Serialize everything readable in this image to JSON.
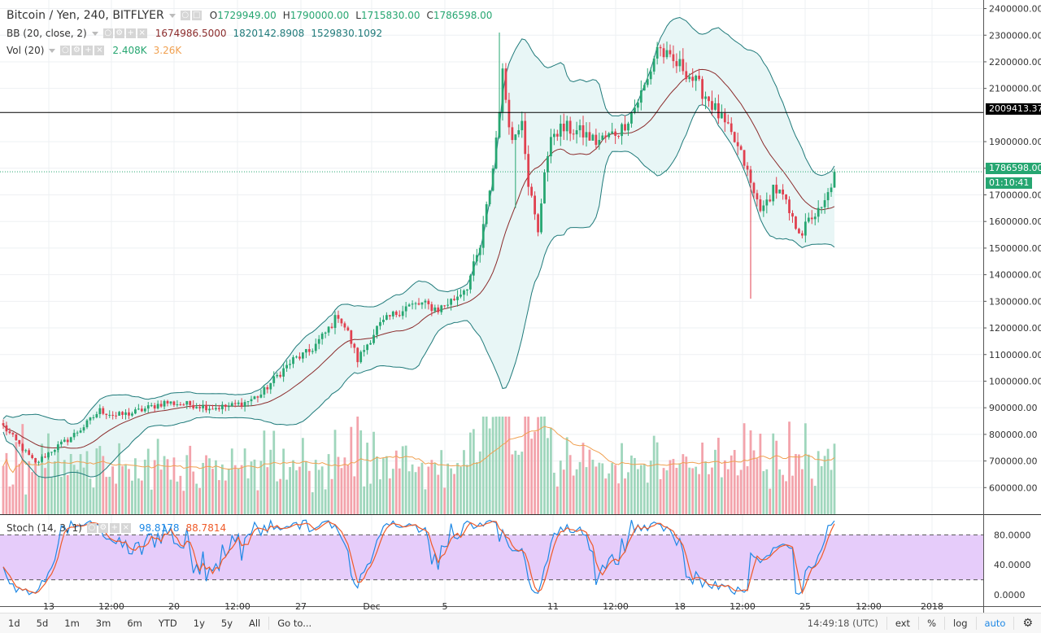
{
  "header": {
    "symbol_title": "Bitcoin / Yen, 240, BITFLYER",
    "open_label": "O",
    "open": "1729949.00",
    "high_label": "H",
    "high": "1790000.00",
    "low_label": "L",
    "low": "1715830.00",
    "close_label": "C",
    "close": "1786598.00"
  },
  "indicators": {
    "bb": {
      "label": "BB (20, close, 2)",
      "basis": "1674986.5000",
      "upper": "1820142.8908",
      "lower": "1529830.1092"
    },
    "vol": {
      "label": "Vol (20)",
      "value": "2.408K",
      "ma": "3.26K"
    },
    "stoch": {
      "label": "Stoch (14, 3, 1)",
      "k": "98.8178",
      "d": "88.7814"
    }
  },
  "price_axis": {
    "ticks": [
      "2400000.00",
      "2300000.00",
      "2200000.00",
      "2100000.00",
      "1900000.00",
      "1800000.00",
      "1700000.00",
      "1600000.00",
      "1500000.00",
      "1400000.00",
      "1300000.00",
      "1200000.00",
      "1100000.00",
      "1000000.00",
      "900000.00",
      "800000.00",
      "700000.00",
      "600000.00"
    ],
    "tick_values": [
      2400000,
      2300000,
      2200000,
      2100000,
      1900000,
      1800000,
      1700000,
      1600000,
      1500000,
      1400000,
      1300000,
      1200000,
      1100000,
      1000000,
      900000,
      800000,
      700000,
      600000
    ],
    "horizontal_line_label": "2009413.37",
    "horizontal_line_value": 2009413.37,
    "last_price_label": "1786598.00",
    "countdown": "01:10:41"
  },
  "stoch_axis": {
    "ticks": [
      "80.0000",
      "40.0000",
      "0.0000"
    ],
    "tick_values": [
      80,
      40,
      0
    ]
  },
  "time_axis": {
    "labels": [
      "13",
      "12:00",
      "20",
      "12:00",
      "27",
      "Dec",
      "5",
      "11",
      "12:00",
      "18",
      "12:00",
      "25",
      "12:00",
      "2018"
    ]
  },
  "bottom_bar": {
    "ranges": [
      "1d",
      "5d",
      "1m",
      "3m",
      "6m",
      "YTD",
      "1y",
      "5y",
      "All"
    ],
    "goto": "Go to...",
    "clock": "14:49:18 (UTC)",
    "options": [
      "ext",
      "%",
      "log",
      "auto"
    ]
  },
  "colors": {
    "up": "#26a671",
    "down": "#e0404f",
    "up_vol": "#9fd6bc",
    "down_vol": "#f3a3ab",
    "bb_line": "#1f7a7a",
    "bb_fill": "#e8f6f6",
    "basis": "#8b2b2b",
    "vol_ma": "#f0a050",
    "stoch_k": "#1e88e5",
    "stoch_d": "#ef5a28",
    "stoch_band": "#e6ccfa"
  },
  "chart_data": {
    "type": "candlestick",
    "title": "Bitcoin / Yen, 240, BITFLYER",
    "ylim": [
      500000,
      2420000
    ],
    "anchors": [
      [
        0,
        830000
      ],
      [
        5,
        760000
      ],
      [
        10,
        690000
      ],
      [
        15,
        740000
      ],
      [
        20,
        780000
      ],
      [
        25,
        830000
      ],
      [
        30,
        890000
      ],
      [
        35,
        870000
      ],
      [
        40,
        880000
      ],
      [
        45,
        900000
      ],
      [
        50,
        920000
      ],
      [
        55,
        915000
      ],
      [
        60,
        910000
      ],
      [
        65,
        900000
      ],
      [
        70,
        905000
      ],
      [
        75,
        920000
      ],
      [
        80,
        950000
      ],
      [
        85,
        1020000
      ],
      [
        90,
        1080000
      ],
      [
        95,
        1110000
      ],
      [
        100,
        1180000
      ],
      [
        104,
        1250000
      ],
      [
        107,
        1180000
      ],
      [
        110,
        1080000
      ],
      [
        113,
        1140000
      ],
      [
        116,
        1200000
      ],
      [
        120,
        1240000
      ],
      [
        125,
        1280000
      ],
      [
        130,
        1290000
      ],
      [
        135,
        1270000
      ],
      [
        140,
        1310000
      ],
      [
        144,
        1360000
      ],
      [
        148,
        1500000
      ],
      [
        152,
        1800000
      ],
      [
        155,
        2150000
      ],
      [
        158,
        1900000
      ],
      [
        161,
        2000000
      ],
      [
        163,
        1750000
      ],
      [
        166,
        1550000
      ],
      [
        168,
        1800000
      ],
      [
        171,
        1940000
      ],
      [
        175,
        1950000
      ],
      [
        180,
        1930000
      ],
      [
        184,
        1900000
      ],
      [
        188,
        1920000
      ],
      [
        192,
        1950000
      ],
      [
        196,
        2030000
      ],
      [
        200,
        2130000
      ],
      [
        203,
        2260000
      ],
      [
        207,
        2200000
      ],
      [
        211,
        2180000
      ],
      [
        215,
        2120000
      ],
      [
        219,
        2060000
      ],
      [
        223,
        1980000
      ],
      [
        227,
        1900000
      ],
      [
        230,
        1820000
      ],
      [
        233,
        1700000
      ],
      [
        236,
        1640000
      ],
      [
        239,
        1730000
      ],
      [
        242,
        1690000
      ],
      [
        245,
        1600000
      ],
      [
        248,
        1560000
      ],
      [
        251,
        1620000
      ],
      [
        254,
        1640000
      ],
      [
        256,
        1700000
      ],
      [
        258,
        1786598
      ]
    ],
    "last_close": 1786598
  }
}
